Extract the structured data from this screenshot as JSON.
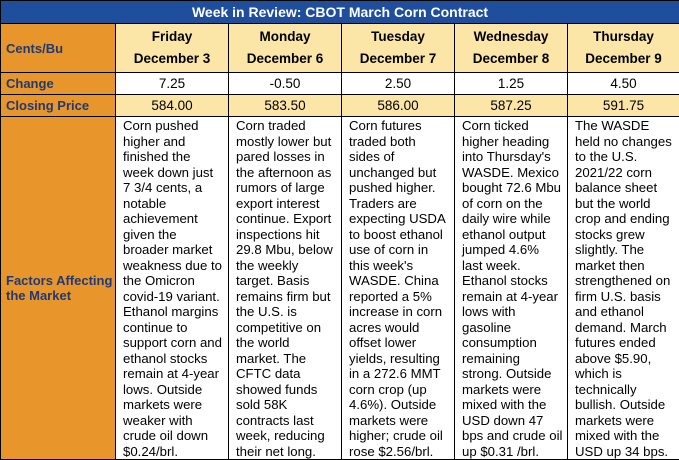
{
  "title": "Week in Review: CBOT March Corn Contract",
  "labels": {
    "units": "Cents/Bu",
    "change": "Change",
    "closing": "Closing Price",
    "factors": "Factors Affecting the Market"
  },
  "days": [
    {
      "day": "Friday",
      "date": "December 3",
      "change": "7.25",
      "closing": "584.00",
      "factors": "Corn pushed higher and finished the week down just 7 3/4 cents, a notable achievement given the broader market weakness due to the Omicron covid-19 variant. Ethanol margins continue to support corn and ethanol stocks remain at 4-year lows. Outside markets were weaker with crude oil down $0.24/brl."
    },
    {
      "day": "Monday",
      "date": "December 6",
      "change": "-0.50",
      "closing": "583.50",
      "factors": "Corn traded mostly lower but pared losses in the afternoon as rumors of large export interest continue. Export inspections hit 29.8 Mbu, below the weekly target. Basis remains firm but the U.S. is competitive on the world market. The CFTC data showed funds sold 58K contracts last week, reducing their net long."
    },
    {
      "day": "Tuesday",
      "date": "December 7",
      "change": "2.50",
      "closing": "586.00",
      "factors": "Corn futures traded both sides of unchanged but pushed higher. Traders are expecting USDA to boost ethanol use of corn in this week's WASDE. China reported a 5% increase in corn acres would offset lower yields, resulting in a 272.6 MMT corn crop (up 4.6%). Outside markets were higher; crude oil rose $2.56/brl."
    },
    {
      "day": "Wednesday",
      "date": "December 8",
      "change": "1.25",
      "closing": "587.25",
      "factors": "Corn ticked higher heading into Thursday's WASDE. Mexico bought 72.6 Mbu of corn on the daily wire while ethanol output jumped 4.6% last week. Ethanol stocks remain at 4-year lows with gasoline consumption remaining strong. Outside markets were mixed with the USD down 47 bps and crude oil up $0.31 /brl."
    },
    {
      "day": "Thursday",
      "date": "December 9",
      "change": "4.50",
      "closing": "591.75",
      "factors": "The WASDE held no changes to the U.S. 2021/22 corn balance sheet but the world crop and ending stocks grew slightly. The market then strengthened on firm U.S. basis and ethanol demand. March futures ended above $5.90, which is technically bullish. Outside markets were mixed with the USD up 34 bps."
    }
  ]
}
